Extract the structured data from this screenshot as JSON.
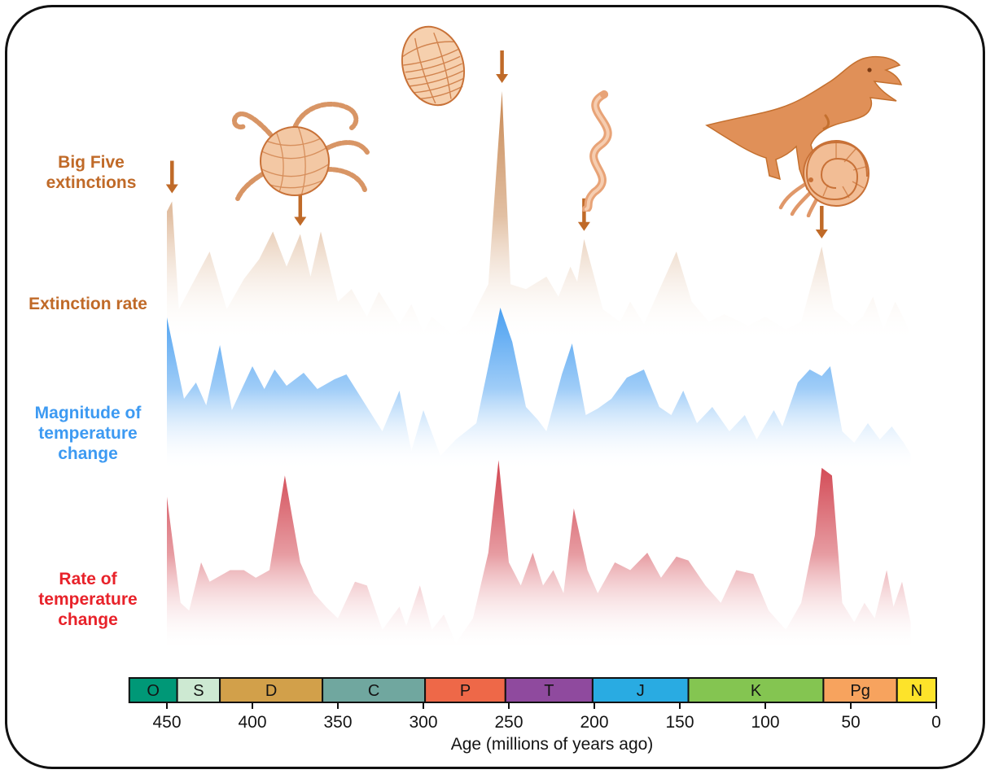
{
  "figure": {
    "labels": {
      "big_five": [
        "Big Five",
        "extinctions"
      ],
      "extinction_rate": "Extinction rate",
      "magnitude": [
        "Magnitude of",
        "temperature",
        "change"
      ],
      "rate": [
        "Rate of",
        "temperature",
        "change"
      ]
    },
    "colors": {
      "extinction_label": "#c06a28",
      "magnitude_label": "#3d9af2",
      "rate_label": "#e8222a",
      "arrow": "#c06a28"
    }
  },
  "axis": {
    "ticks": [
      450,
      400,
      350,
      300,
      250,
      200,
      150,
      100,
      50,
      0
    ],
    "title": "Age (millions of years ago)"
  },
  "timescale": {
    "segments": [
      {
        "label": "O",
        "start": 472,
        "end": 444,
        "color": "#009877"
      },
      {
        "label": "S",
        "start": 444,
        "end": 419,
        "color": "#cde9d2"
      },
      {
        "label": "D",
        "start": 419,
        "end": 359,
        "color": "#d2a04a"
      },
      {
        "label": "C",
        "start": 359,
        "end": 299,
        "color": "#70a79f"
      },
      {
        "label": "P",
        "start": 299,
        "end": 252,
        "color": "#ee6848"
      },
      {
        "label": "T",
        "start": 252,
        "end": 201,
        "color": "#8f4a9e"
      },
      {
        "label": "J",
        "start": 201,
        "end": 145,
        "color": "#29abe2"
      },
      {
        "label": "K",
        "start": 145,
        "end": 66,
        "color": "#84c551"
      },
      {
        "label": "Pg",
        "start": 66,
        "end": 23,
        "color": "#f7a35e"
      },
      {
        "label": "N",
        "start": 23,
        "end": 0,
        "color": "#fde32a"
      }
    ]
  },
  "chart_data": {
    "type": "area",
    "title": "Big Five extinctions vs temperature change",
    "xlabel": "Age (millions of years ago)",
    "x_range": [
      450,
      0
    ],
    "x_ticks": [
      450,
      400,
      350,
      300,
      250,
      200,
      150,
      100,
      50,
      0
    ],
    "y_note": "relative intensity, normalized 0-1 per series (no y axis shown)",
    "legend_position": "left-labels",
    "grid": false,
    "series": [
      {
        "name": "Extinction rate",
        "data_name": "extinction-rate-series",
        "color": "#c5824a",
        "points": [
          [
            450,
            0.52
          ],
          [
            447,
            0.56
          ],
          [
            443,
            0.13
          ],
          [
            425,
            0.36
          ],
          [
            415,
            0.13
          ],
          [
            405,
            0.25
          ],
          [
            396,
            0.33
          ],
          [
            388,
            0.44
          ],
          [
            380,
            0.3
          ],
          [
            372,
            0.43
          ],
          [
            366,
            0.26
          ],
          [
            360,
            0.44
          ],
          [
            350,
            0.16
          ],
          [
            342,
            0.21
          ],
          [
            333,
            0.1
          ],
          [
            326,
            0.2
          ],
          [
            314,
            0.07
          ],
          [
            307,
            0.15
          ],
          [
            300,
            0.04
          ],
          [
            295,
            0.1
          ],
          [
            283,
            0.03
          ],
          [
            274,
            0.07
          ],
          [
            262,
            0.23
          ],
          [
            254,
            1.0
          ],
          [
            249,
            0.23
          ],
          [
            240,
            0.21
          ],
          [
            228,
            0.26
          ],
          [
            221,
            0.18
          ],
          [
            214,
            0.3
          ],
          [
            210,
            0.24
          ],
          [
            206,
            0.41
          ],
          [
            195,
            0.13
          ],
          [
            185,
            0.08
          ],
          [
            179,
            0.16
          ],
          [
            171,
            0.07
          ],
          [
            152,
            0.36
          ],
          [
            143,
            0.16
          ],
          [
            133,
            0.08
          ],
          [
            124,
            0.11
          ],
          [
            110,
            0.065
          ],
          [
            100,
            0.1
          ],
          [
            88,
            0.05
          ],
          [
            79,
            0.08
          ],
          [
            67,
            0.38
          ],
          [
            60,
            0.13
          ],
          [
            49,
            0.065
          ],
          [
            43,
            0.1
          ],
          [
            37,
            0.18
          ],
          [
            31,
            0.05
          ],
          [
            24,
            0.16
          ],
          [
            18,
            0.08
          ],
          [
            15,
            0.02
          ]
        ]
      },
      {
        "name": "Magnitude of temperature change",
        "data_name": "temperature-magnitude-series",
        "color": "#419bf0",
        "points": [
          [
            450,
            0.94
          ],
          [
            440,
            0.44
          ],
          [
            433,
            0.54
          ],
          [
            427,
            0.4
          ],
          [
            419,
            0.77
          ],
          [
            412,
            0.37
          ],
          [
            400,
            0.64
          ],
          [
            393,
            0.5
          ],
          [
            387,
            0.62
          ],
          [
            380,
            0.52
          ],
          [
            370,
            0.6
          ],
          [
            362,
            0.5
          ],
          [
            352,
            0.56
          ],
          [
            345,
            0.59
          ],
          [
            336,
            0.44
          ],
          [
            324,
            0.24
          ],
          [
            314,
            0.49
          ],
          [
            307,
            0.12
          ],
          [
            300,
            0.37
          ],
          [
            290,
            0.09
          ],
          [
            281,
            0.19
          ],
          [
            269,
            0.29
          ],
          [
            262,
            0.64
          ],
          [
            255,
            1.0
          ],
          [
            248,
            0.79
          ],
          [
            240,
            0.39
          ],
          [
            233,
            0.31
          ],
          [
            228,
            0.24
          ],
          [
            219,
            0.59
          ],
          [
            213,
            0.78
          ],
          [
            205,
            0.34
          ],
          [
            198,
            0.38
          ],
          [
            190,
            0.44
          ],
          [
            181,
            0.57
          ],
          [
            171,
            0.62
          ],
          [
            162,
            0.39
          ],
          [
            155,
            0.34
          ],
          [
            148,
            0.49
          ],
          [
            140,
            0.29
          ],
          [
            131,
            0.39
          ],
          [
            121,
            0.24
          ],
          [
            112,
            0.34
          ],
          [
            105,
            0.19
          ],
          [
            95,
            0.37
          ],
          [
            90,
            0.27
          ],
          [
            81,
            0.54
          ],
          [
            74,
            0.62
          ],
          [
            67,
            0.58
          ],
          [
            62,
            0.64
          ],
          [
            55,
            0.24
          ],
          [
            48,
            0.17
          ],
          [
            40,
            0.29
          ],
          [
            33,
            0.19
          ],
          [
            26,
            0.27
          ],
          [
            19,
            0.17
          ],
          [
            15,
            0.1
          ]
        ]
      },
      {
        "name": "Rate of temperature change",
        "data_name": "temperature-rate-series",
        "color": "#cf3a46",
        "points": [
          [
            450,
            0.8
          ],
          [
            442,
            0.25
          ],
          [
            437,
            0.21
          ],
          [
            430,
            0.46
          ],
          [
            425,
            0.36
          ],
          [
            413,
            0.42
          ],
          [
            405,
            0.42
          ],
          [
            398,
            0.38
          ],
          [
            390,
            0.42
          ],
          [
            381,
            0.91
          ],
          [
            372,
            0.46
          ],
          [
            364,
            0.3
          ],
          [
            357,
            0.23
          ],
          [
            350,
            0.17
          ],
          [
            340,
            0.36
          ],
          [
            333,
            0.34
          ],
          [
            324,
            0.11
          ],
          [
            314,
            0.23
          ],
          [
            310,
            0.13
          ],
          [
            302,
            0.34
          ],
          [
            295,
            0.11
          ],
          [
            288,
            0.19
          ],
          [
            281,
            0.04
          ],
          [
            271,
            0.17
          ],
          [
            262,
            0.51
          ],
          [
            256,
            0.99
          ],
          [
            250,
            0.46
          ],
          [
            243,
            0.34
          ],
          [
            236,
            0.51
          ],
          [
            230,
            0.34
          ],
          [
            224,
            0.42
          ],
          [
            218,
            0.3
          ],
          [
            212,
            0.74
          ],
          [
            204,
            0.42
          ],
          [
            198,
            0.3
          ],
          [
            188,
            0.46
          ],
          [
            179,
            0.42
          ],
          [
            169,
            0.51
          ],
          [
            161,
            0.38
          ],
          [
            152,
            0.49
          ],
          [
            145,
            0.47
          ],
          [
            135,
            0.34
          ],
          [
            126,
            0.25
          ],
          [
            117,
            0.42
          ],
          [
            107,
            0.4
          ],
          [
            98,
            0.21
          ],
          [
            88,
            0.11
          ],
          [
            79,
            0.25
          ],
          [
            71,
            0.6
          ],
          [
            67,
            0.95
          ],
          [
            61,
            0.91
          ],
          [
            55,
            0.25
          ],
          [
            48,
            0.15
          ],
          [
            42,
            0.25
          ],
          [
            36,
            0.17
          ],
          [
            29,
            0.42
          ],
          [
            25,
            0.23
          ],
          [
            20,
            0.36
          ],
          [
            15,
            0.15
          ]
        ]
      }
    ],
    "annotations": {
      "label": "Big Five extinctions",
      "big_five_arrows_ma": [
        447,
        372,
        254,
        206,
        67
      ],
      "arrow_color": "#c06a28"
    }
  },
  "illustrations": [
    "crinoid-fossil",
    "trilobite-fossil",
    "conodont-fossil",
    "tyrannosaurus-illustration",
    "ammonite-fossil"
  ]
}
